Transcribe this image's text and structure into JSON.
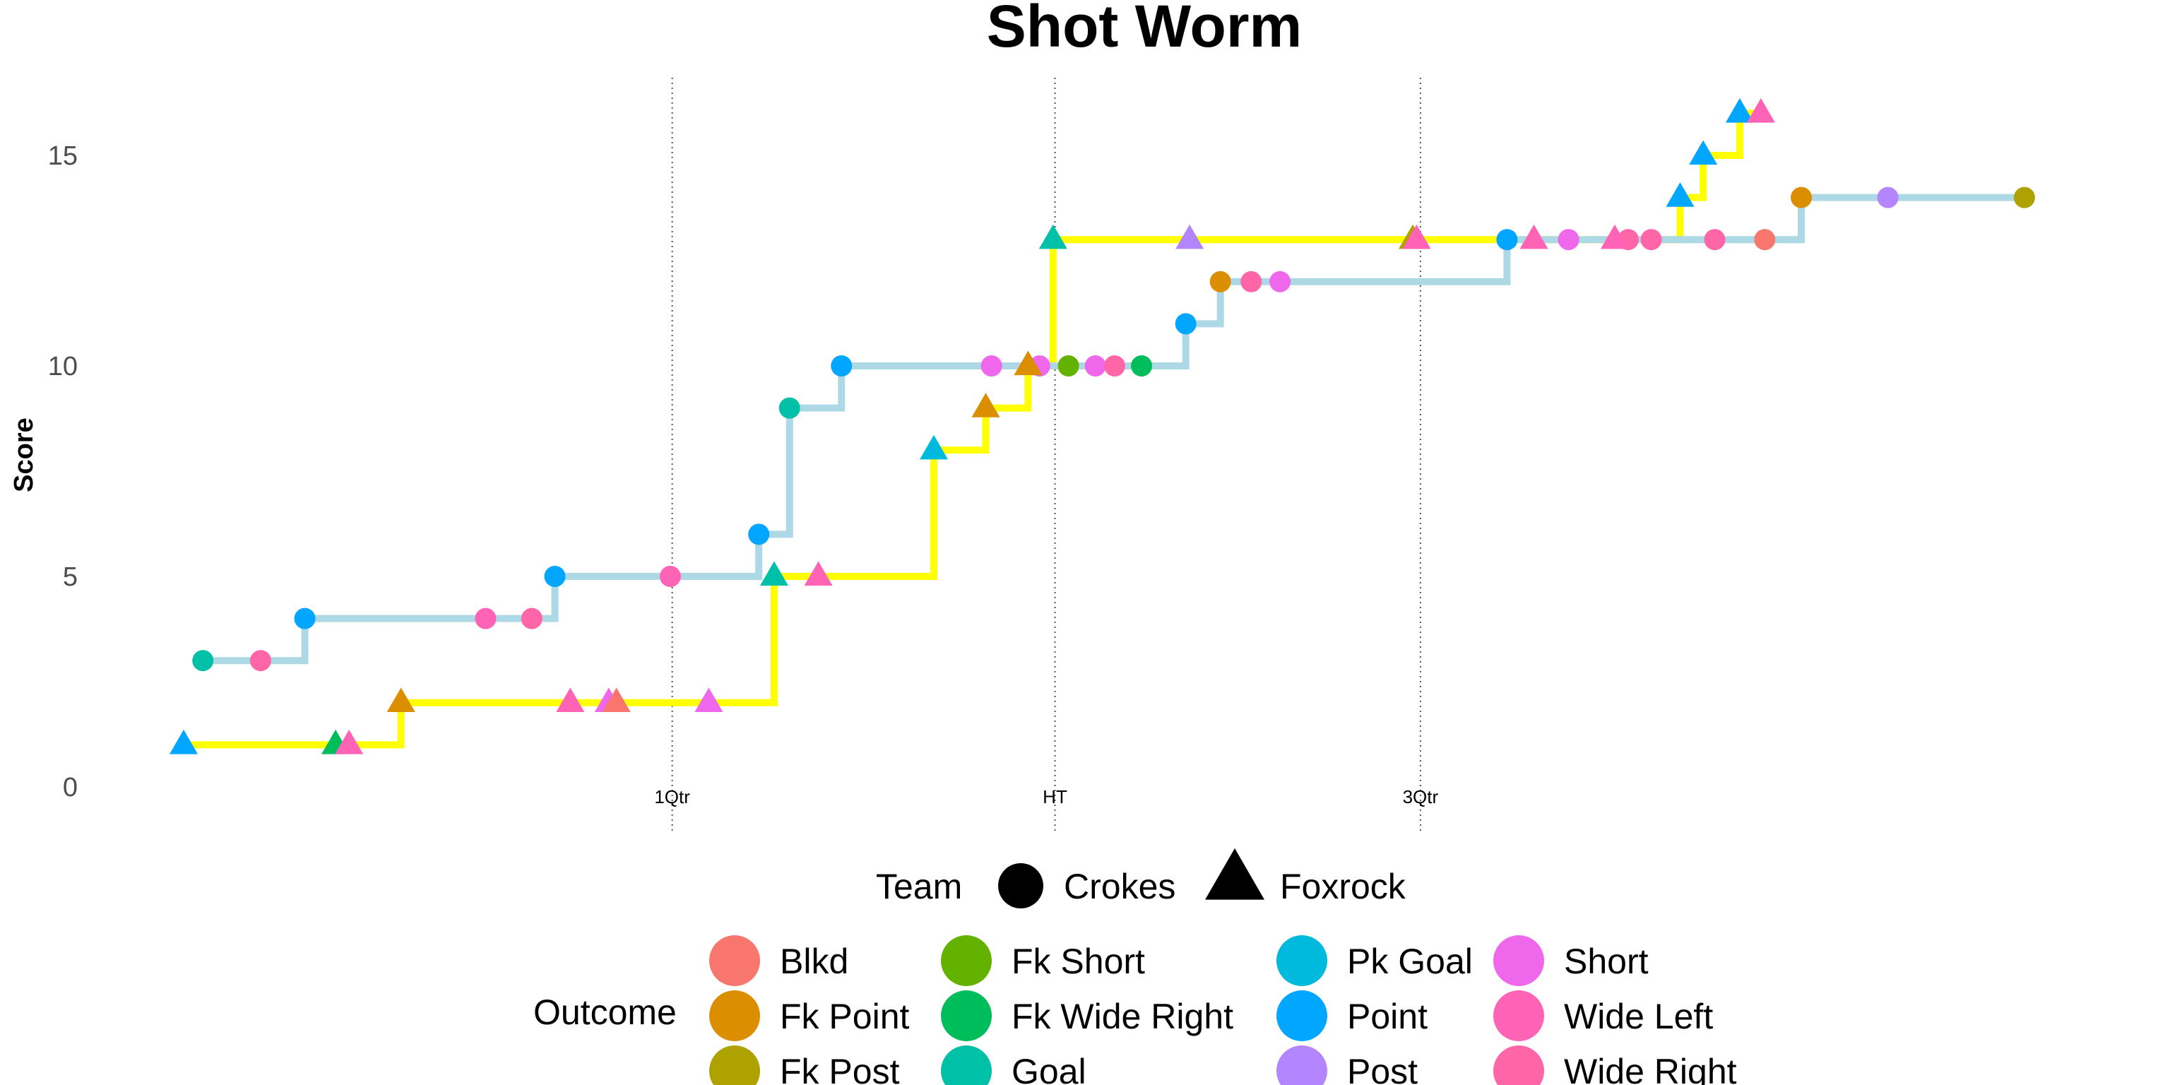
{
  "chart_data": {
    "type": "line",
    "title": "Shot Worm",
    "xlabel": "",
    "ylabel": "Score",
    "x_range": [
      0,
      100
    ],
    "ylim": [
      0,
      16.5
    ],
    "y_ticks": [
      0,
      5,
      10,
      15
    ],
    "grid": false,
    "x_markers": [
      {
        "label": "1Qtr",
        "x": 25.4
      },
      {
        "label": "HT",
        "x": 45.3
      },
      {
        "label": "3Qtr",
        "x": 64.3
      }
    ],
    "colors": {
      "crokes_line": "#ADD8E6",
      "foxrock_line": "#FFFF00"
    },
    "outcome_colors": {
      "Blkd": "#F8766D",
      "Fk Point": "#DB8E00",
      "Fk Post": "#AEA200",
      "Fk Short": "#64B200",
      "Fk Wide Right": "#00BD5C",
      "Goal": "#00C1A7",
      "Pk Goal": "#00BADE",
      "Point": "#00A6FF",
      "Post": "#B385FF",
      "Short": "#EF67EB",
      "Wide Left": "#FF63B6",
      "Wide Right": "#FF66A8"
    },
    "series": [
      {
        "name": "Crokes",
        "shape": "circle",
        "points": [
          {
            "x": 1.0,
            "y": 3,
            "outcome": "Goal"
          },
          {
            "x": 4.0,
            "y": 3,
            "outcome": "Wide Right"
          },
          {
            "x": 6.3,
            "y": 4,
            "outcome": "Point"
          },
          {
            "x": 15.7,
            "y": 4,
            "outcome": "Wide Left"
          },
          {
            "x": 18.1,
            "y": 4,
            "outcome": "Wide Right"
          },
          {
            "x": 19.3,
            "y": 5,
            "outcome": "Point"
          },
          {
            "x": 25.3,
            "y": 5,
            "outcome": "Wide Left"
          },
          {
            "x": 29.9,
            "y": 6,
            "outcome": "Point"
          },
          {
            "x": 31.5,
            "y": 9,
            "outcome": "Goal"
          },
          {
            "x": 34.2,
            "y": 10,
            "outcome": "Point"
          },
          {
            "x": 42.0,
            "y": 10,
            "outcome": "Short"
          },
          {
            "x": 44.5,
            "y": 10,
            "outcome": "Short"
          },
          {
            "x": 46.0,
            "y": 10,
            "outcome": "Fk Short"
          },
          {
            "x": 47.4,
            "y": 10,
            "outcome": "Short"
          },
          {
            "x": 48.4,
            "y": 10,
            "outcome": "Wide Right"
          },
          {
            "x": 49.8,
            "y": 10,
            "outcome": "Fk Wide Right"
          },
          {
            "x": 52.1,
            "y": 11,
            "outcome": "Point"
          },
          {
            "x": 53.9,
            "y": 12,
            "outcome": "Fk Point"
          },
          {
            "x": 55.5,
            "y": 12,
            "outcome": "Wide Right"
          },
          {
            "x": 57.0,
            "y": 12,
            "outcome": "Short"
          },
          {
            "x": 68.8,
            "y": 13,
            "outcome": "Point"
          },
          {
            "x": 72.0,
            "y": 13,
            "outcome": "Short"
          },
          {
            "x": 75.1,
            "y": 13,
            "outcome": "Wide Right"
          },
          {
            "x": 76.3,
            "y": 13,
            "outcome": "Wide Right"
          },
          {
            "x": 79.6,
            "y": 13,
            "outcome": "Wide Right"
          },
          {
            "x": 82.2,
            "y": 13,
            "outcome": "Blkd"
          },
          {
            "x": 84.1,
            "y": 14,
            "outcome": "Fk Point"
          },
          {
            "x": 88.6,
            "y": 14,
            "outcome": "Post"
          },
          {
            "x": 95.7,
            "y": 14,
            "outcome": "Fk Post"
          }
        ]
      },
      {
        "name": "Foxrock",
        "shape": "triangle",
        "points": [
          {
            "x": 0.0,
            "y": 1,
            "outcome": "Point"
          },
          {
            "x": 7.9,
            "y": 1,
            "outcome": "Fk Wide Right"
          },
          {
            "x": 8.6,
            "y": 1,
            "outcome": "Wide Left"
          },
          {
            "x": 11.3,
            "y": 2,
            "outcome": "Fk Point"
          },
          {
            "x": 20.1,
            "y": 2,
            "outcome": "Wide Left"
          },
          {
            "x": 22.1,
            "y": 2,
            "outcome": "Short"
          },
          {
            "x": 22.5,
            "y": 2,
            "outcome": "Blkd"
          },
          {
            "x": 27.3,
            "y": 2,
            "outcome": "Short"
          },
          {
            "x": 30.7,
            "y": 5,
            "outcome": "Goal"
          },
          {
            "x": 33.0,
            "y": 5,
            "outcome": "Wide Left"
          },
          {
            "x": 39.0,
            "y": 8,
            "outcome": "Pk Goal"
          },
          {
            "x": 41.7,
            "y": 9,
            "outcome": "Fk Point"
          },
          {
            "x": 43.9,
            "y": 10,
            "outcome": "Fk Point"
          },
          {
            "x": 45.2,
            "y": 13,
            "outcome": "Goal"
          },
          {
            "x": 52.3,
            "y": 13,
            "outcome": "Post"
          },
          {
            "x": 63.9,
            "y": 13,
            "outcome": "Fk Post"
          },
          {
            "x": 64.1,
            "y": 13,
            "outcome": "Wide Left"
          },
          {
            "x": 70.2,
            "y": 13,
            "outcome": "Wide Left"
          },
          {
            "x": 74.4,
            "y": 13,
            "outcome": "Wide Left"
          },
          {
            "x": 77.8,
            "y": 14,
            "outcome": "Point"
          },
          {
            "x": 79.0,
            "y": 15,
            "outcome": "Point"
          },
          {
            "x": 80.9,
            "y": 16,
            "outcome": "Point"
          },
          {
            "x": 82.0,
            "y": 16,
            "outcome": "Wide Left"
          }
        ]
      }
    ],
    "legend": {
      "placement": "bottom",
      "team_title": "Team",
      "team_entries": [
        {
          "label": "Crokes",
          "shape": "circle"
        },
        {
          "label": "Foxrock",
          "shape": "triangle"
        }
      ],
      "outcome_title": "Outcome",
      "outcome_columns": [
        [
          "Blkd",
          "Fk Point",
          "Fk Post"
        ],
        [
          "Fk Short",
          "Fk Wide Right",
          "Goal"
        ],
        [
          "Pk Goal",
          "Point",
          "Post"
        ],
        [
          "Short",
          "Wide Left",
          "Wide Right"
        ]
      ]
    }
  }
}
